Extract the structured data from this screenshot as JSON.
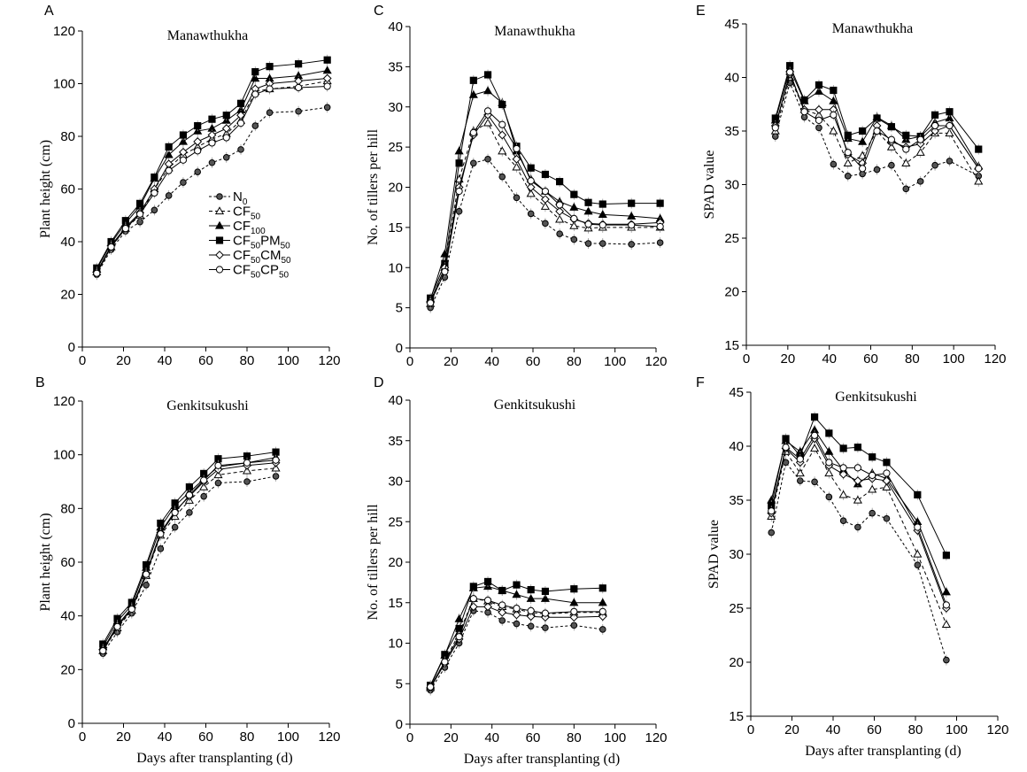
{
  "chart_data": [
    {
      "panel": "A",
      "type": "line",
      "title": "Manawthukha",
      "xlabel": "",
      "ylabel": "Plant height (cm)",
      "xlim": [
        0,
        120
      ],
      "ylim": [
        0,
        120
      ],
      "xticks": [
        "0",
        "20",
        "40",
        "60",
        "80",
        "100",
        "120"
      ],
      "yticks": [
        "0",
        "20",
        "40",
        "60",
        "80",
        "100",
        "120"
      ],
      "x": [
        7,
        14,
        21,
        28,
        35,
        42,
        49,
        56,
        63,
        70,
        77,
        84,
        91,
        105,
        119
      ],
      "series": [
        {
          "key": "N0",
          "values": [
            27.5,
            37,
            44,
            47.5,
            52,
            57.5,
            62.5,
            66.5,
            70,
            72,
            75,
            84,
            89,
            89.5,
            91
          ]
        },
        {
          "key": "CF50",
          "values": [
            28.5,
            38,
            45,
            50,
            60,
            68,
            73,
            76,
            79,
            81,
            86,
            97,
            98,
            99,
            101
          ]
        },
        {
          "key": "CF100",
          "values": [
            29.5,
            39.5,
            47,
            53.5,
            64,
            73,
            78,
            82,
            83,
            86,
            90,
            102,
            102,
            103,
            105
          ]
        },
        {
          "key": "CF50PM50",
          "values": [
            30,
            40,
            48,
            54.5,
            64.5,
            76,
            80.5,
            84,
            86.5,
            88,
            92.5,
            104.5,
            106.5,
            107.5,
            109
          ]
        },
        {
          "key": "CF50CM50",
          "values": [
            28.5,
            38.5,
            45.5,
            51,
            60,
            69.5,
            74,
            78,
            80.5,
            83,
            88,
            98,
            100,
            101,
            102
          ]
        },
        {
          "key": "CF50CP50",
          "values": [
            28,
            38,
            45,
            50.5,
            58.5,
            67,
            71,
            74.5,
            77.5,
            79.5,
            85,
            96,
            98,
            98.5,
            99
          ]
        }
      ],
      "legend": {
        "position": "center-right",
        "entries": [
          {
            "key": "N0",
            "base": "N",
            "sub": "0"
          },
          {
            "key": "CF50",
            "base": "CF",
            "sub": "50"
          },
          {
            "key": "CF100",
            "base": "CF",
            "sub": "100"
          },
          {
            "key": "CF50PM50",
            "base": "CF",
            "sub": "50",
            "base2": "PM",
            "sub2": "50"
          },
          {
            "key": "CF50CM50",
            "base": "CF",
            "sub": "50",
            "base2": "CM",
            "sub2": "50"
          },
          {
            "key": "CF50CP50",
            "base": "CF",
            "sub": "50",
            "base2": "CP",
            "sub2": "50"
          }
        ]
      }
    },
    {
      "panel": "B",
      "type": "line",
      "title": "Genkitsukushi",
      "xlabel": "Days after transplanting (d)",
      "ylabel": "Plant height (cm)",
      "xlim": [
        0,
        120
      ],
      "ylim": [
        0,
        120
      ],
      "xticks": [
        "0",
        "20",
        "40",
        "60",
        "80",
        "100",
        "120"
      ],
      "yticks": [
        "0",
        "20",
        "40",
        "60",
        "80",
        "100",
        "120"
      ],
      "x": [
        10,
        17,
        24,
        31,
        38,
        45,
        52,
        59,
        66,
        80,
        94
      ],
      "series": [
        {
          "key": "N0",
          "values": [
            26,
            34,
            41,
            51.5,
            65,
            73,
            78.5,
            84.5,
            89.5,
            90,
            92
          ]
        },
        {
          "key": "CF50",
          "values": [
            27,
            35.5,
            42,
            55,
            70,
            77,
            83,
            88,
            92.5,
            94,
            95
          ]
        },
        {
          "key": "CF100",
          "values": [
            28.5,
            38,
            44,
            58,
            73,
            81,
            86,
            91,
            95.5,
            97,
            99
          ]
        },
        {
          "key": "CF50PM50",
          "values": [
            29.5,
            39,
            45,
            59,
            74.5,
            82,
            88,
            93,
            98.5,
            99.5,
            101
          ]
        },
        {
          "key": "CF50CM50",
          "values": [
            27.5,
            36.5,
            43,
            56,
            71,
            79,
            84.5,
            90,
            94.5,
            96,
            97
          ]
        },
        {
          "key": "CF50CP50",
          "values": [
            27,
            36,
            42.5,
            55.5,
            70.5,
            78.5,
            85,
            90.5,
            96,
            97,
            98
          ]
        }
      ]
    },
    {
      "panel": "C",
      "type": "line",
      "title": "Manawthukha",
      "xlabel": "",
      "ylabel": "No. of tillers per hill",
      "xlim": [
        0,
        120
      ],
      "ylim": [
        0,
        40
      ],
      "xticks": [
        "0",
        "20",
        "40",
        "60",
        "80",
        "100",
        "120"
      ],
      "yticks": [
        "0",
        "5",
        "10",
        "15",
        "20",
        "25",
        "30",
        "35",
        "40"
      ],
      "x": [
        10,
        17,
        24,
        31,
        38,
        45,
        52,
        59,
        66,
        73,
        80,
        87,
        94,
        108,
        122
      ],
      "series": [
        {
          "key": "N0",
          "values": [
            5,
            8.8,
            17,
            23,
            23.5,
            21.3,
            18.7,
            16.7,
            15.5,
            14.2,
            13.5,
            13,
            13,
            12.9,
            13.1
          ]
        },
        {
          "key": "CF50",
          "values": [
            5.5,
            10,
            21,
            27,
            28,
            24.5,
            22.5,
            19.2,
            17.6,
            16,
            15.2,
            14.9,
            15,
            15,
            15
          ]
        },
        {
          "key": "CF100",
          "values": [
            6,
            11.7,
            24.5,
            31.5,
            32,
            30.5,
            24.5,
            21,
            19.5,
            18.2,
            17.5,
            17,
            16.6,
            16.4,
            16.1
          ]
        },
        {
          "key": "CF50PM50",
          "values": [
            6.2,
            10.5,
            23,
            33.3,
            34,
            30.3,
            25.1,
            22.4,
            21.6,
            20.7,
            19.1,
            18.1,
            17.9,
            18,
            18
          ]
        },
        {
          "key": "CF50CM50",
          "values": [
            5.8,
            10,
            20,
            26.5,
            29,
            26.5,
            23.5,
            20,
            18.5,
            17,
            16,
            15.5,
            15.4,
            15.4,
            15.6
          ]
        },
        {
          "key": "CF50CP50",
          "values": [
            5.6,
            9.5,
            19.5,
            26.8,
            29.5,
            27.8,
            24.8,
            20.8,
            19.5,
            17.8,
            16.1,
            15.4,
            15.3,
            15.3,
            15.1
          ]
        }
      ]
    },
    {
      "panel": "D",
      "type": "line",
      "title": "Genkitsukushi",
      "xlabel": "Days after transplanting (d)",
      "ylabel": "No. of tillers per hill",
      "xlim": [
        0,
        120
      ],
      "ylim": [
        0,
        40
      ],
      "xticks": [
        "0",
        "20",
        "40",
        "60",
        "80",
        "100",
        "120"
      ],
      "yticks": [
        "0",
        "5",
        "10",
        "15",
        "20",
        "25",
        "30",
        "35",
        "40"
      ],
      "x": [
        10,
        17,
        24,
        31,
        38,
        45,
        52,
        59,
        66,
        80,
        94
      ],
      "series": [
        {
          "key": "N0",
          "values": [
            4.2,
            7,
            10,
            14,
            13.8,
            12.8,
            12.4,
            12.1,
            11.9,
            12.2,
            11.7
          ]
        },
        {
          "key": "CF50",
          "values": [
            4.5,
            7.8,
            11.2,
            15.5,
            15.2,
            14.5,
            14.2,
            13.8,
            13.6,
            13.8,
            13.8
          ]
        },
        {
          "key": "CF100",
          "values": [
            4.7,
            8.5,
            13,
            16.8,
            17,
            16.5,
            16,
            15.5,
            15.5,
            15,
            15
          ]
        },
        {
          "key": "CF50PM50",
          "values": [
            4.8,
            8.6,
            11.8,
            17,
            17.6,
            16.5,
            17.2,
            16.6,
            16.4,
            16.7,
            16.8
          ]
        },
        {
          "key": "CF50CM50",
          "values": [
            4.5,
            7.5,
            10.5,
            14.5,
            14.5,
            13.8,
            13.5,
            13.3,
            13.2,
            13.2,
            13.3
          ]
        },
        {
          "key": "CF50CP50",
          "values": [
            4.6,
            7.7,
            10.8,
            15.5,
            15.3,
            14.7,
            14.3,
            14,
            13.7,
            13.9,
            13.9
          ]
        }
      ]
    },
    {
      "panel": "E",
      "type": "line",
      "title": "Manawthukha",
      "xlabel": "",
      "ylabel": "SPAD value",
      "xlim": [
        0,
        120
      ],
      "ylim": [
        15,
        45
      ],
      "xticks": [
        "0",
        "20",
        "40",
        "60",
        "80",
        "100",
        "120"
      ],
      "yticks": [
        "15",
        "20",
        "25",
        "30",
        "35",
        "40",
        "45"
      ],
      "x": [
        14,
        21,
        28,
        35,
        42,
        49,
        56,
        63,
        70,
        77,
        84,
        91,
        98,
        112
      ],
      "series": [
        {
          "key": "N0",
          "values": [
            34.5,
            39.5,
            36.3,
            35.3,
            31.9,
            30.8,
            31,
            31.4,
            31.8,
            29.6,
            30.3,
            31.8,
            32.2,
            30.8
          ]
        },
        {
          "key": "CF50",
          "values": [
            35,
            40,
            37,
            36.5,
            35,
            32,
            32.7,
            35,
            33.5,
            32,
            33,
            34.8,
            34.8,
            30.3
          ]
        },
        {
          "key": "CF100",
          "values": [
            36,
            40.8,
            37.8,
            38.7,
            37.8,
            34.3,
            34,
            36.3,
            35.5,
            34.2,
            34.5,
            35.8,
            36.2,
            31.7
          ]
        },
        {
          "key": "CF50PM50",
          "values": [
            36.2,
            41.1,
            37.9,
            39.3,
            38.8,
            34.6,
            35,
            36.2,
            35.4,
            34.6,
            34.5,
            36.5,
            36.8,
            33.3
          ]
        },
        {
          "key": "CF50CM50",
          "values": [
            35.5,
            40.3,
            37,
            37,
            37,
            32.8,
            32,
            35.5,
            34,
            33.5,
            33.8,
            35,
            35.5,
            31.5
          ]
        },
        {
          "key": "CF50CP50",
          "values": [
            35.3,
            40.5,
            36.8,
            36,
            36.5,
            33,
            31.5,
            35,
            34.2,
            33.3,
            34.2,
            35.5,
            35.5,
            31.5
          ]
        }
      ]
    },
    {
      "panel": "F",
      "type": "line",
      "title": "Genkitsukushi",
      "xlabel": "Days after transplanting (d)",
      "ylabel": "SPAD value",
      "xlim": [
        0,
        120
      ],
      "ylim": [
        15,
        45
      ],
      "xticks": [
        "0",
        "20",
        "40",
        "60",
        "80",
        "100",
        "120"
      ],
      "yticks": [
        "15",
        "20",
        "25",
        "30",
        "35",
        "40",
        "45"
      ],
      "x": [
        10,
        17,
        24,
        31,
        38,
        45,
        52,
        59,
        66,
        81,
        95
      ],
      "series": [
        {
          "key": "N0",
          "values": [
            32,
            38.5,
            36.8,
            36.7,
            35.3,
            33.1,
            32.5,
            33.8,
            33.3,
            29,
            20.2
          ]
        },
        {
          "key": "CF50",
          "values": [
            33.5,
            39.5,
            37.5,
            39.8,
            37.5,
            35.5,
            35,
            36,
            36.2,
            30,
            23.5
          ]
        },
        {
          "key": "CF100",
          "values": [
            35,
            40.5,
            39.5,
            41.5,
            39.5,
            37.8,
            36.5,
            37.5,
            37,
            33,
            26.5
          ]
        },
        {
          "key": "CF50PM50",
          "values": [
            34.5,
            40.7,
            39.1,
            42.7,
            41.2,
            39.8,
            39.9,
            39,
            38.5,
            35.5,
            29.9
          ]
        },
        {
          "key": "CF50CM50",
          "values": [
            33.8,
            39.8,
            38.5,
            40.7,
            38.2,
            37.4,
            36.8,
            37,
            36.8,
            32.2,
            25
          ]
        },
        {
          "key": "CF50CP50",
          "values": [
            34,
            39.9,
            38.8,
            41,
            38.5,
            38,
            38,
            37.3,
            37.5,
            32.5,
            25.3
          ]
        }
      ]
    }
  ]
}
